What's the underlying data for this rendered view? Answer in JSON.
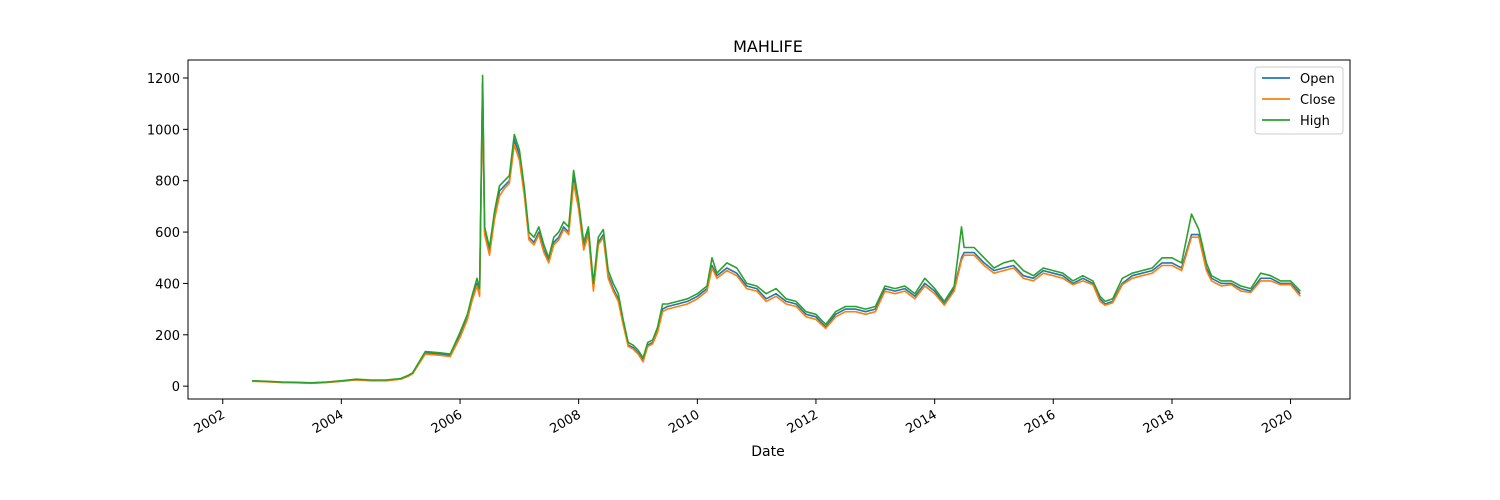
{
  "chart_data": {
    "type": "line",
    "title": "MAHLIFE",
    "xlabel": "Date",
    "ylabel": "",
    "x_axis": "date",
    "xlim": [
      "2001-06-01",
      "2021-01-01"
    ],
    "ylim": [
      -50,
      1270
    ],
    "x_ticks": [
      "2002",
      "2004",
      "2006",
      "2008",
      "2010",
      "2012",
      "2014",
      "2016",
      "2018",
      "2020"
    ],
    "y_ticks": [
      0,
      200,
      400,
      600,
      800,
      1000,
      1200
    ],
    "grid": false,
    "legend_position": "top-right",
    "x": [
      "2002-07-01",
      "2002-10-01",
      "2003-01-01",
      "2003-04-01",
      "2003-07-01",
      "2003-10-01",
      "2004-01-01",
      "2004-04-01",
      "2004-07-01",
      "2004-10-01",
      "2005-01-01",
      "2005-02-15",
      "2005-03-15",
      "2005-06-01",
      "2005-09-01",
      "2005-11-01",
      "2006-01-01",
      "2006-02-15",
      "2006-03-15",
      "2006-04-15",
      "2006-05-01",
      "2006-05-20",
      "2006-06-01",
      "2006-07-01",
      "2006-08-01",
      "2006-09-01",
      "2006-10-01",
      "2006-11-01",
      "2006-12-01",
      "2007-01-01",
      "2007-02-01",
      "2007-03-01",
      "2007-04-01",
      "2007-05-01",
      "2007-06-01",
      "2007-07-01",
      "2007-08-01",
      "2007-09-01",
      "2007-10-01",
      "2007-11-01",
      "2007-12-01",
      "2008-01-01",
      "2008-02-01",
      "2008-03-01",
      "2008-04-01",
      "2008-05-01",
      "2008-06-01",
      "2008-07-01",
      "2008-08-01",
      "2008-09-01",
      "2008-10-01",
      "2008-11-01",
      "2008-12-01",
      "2009-01-01",
      "2009-02-01",
      "2009-03-01",
      "2009-04-01",
      "2009-05-01",
      "2009-06-01",
      "2009-07-01",
      "2009-09-01",
      "2009-11-01",
      "2010-01-01",
      "2010-03-01",
      "2010-04-01",
      "2010-05-01",
      "2010-07-01",
      "2010-09-01",
      "2010-11-01",
      "2011-01-01",
      "2011-03-01",
      "2011-05-01",
      "2011-07-01",
      "2011-09-01",
      "2011-11-01",
      "2012-01-01",
      "2012-03-01",
      "2012-05-01",
      "2012-07-01",
      "2012-09-01",
      "2012-11-01",
      "2013-01-01",
      "2013-03-01",
      "2013-05-01",
      "2013-07-01",
      "2013-09-01",
      "2013-11-01",
      "2014-01-01",
      "2014-03-01",
      "2014-05-01",
      "2014-06-15",
      "2014-07-01",
      "2014-09-01",
      "2014-11-01",
      "2015-01-01",
      "2015-03-01",
      "2015-05-01",
      "2015-07-01",
      "2015-09-01",
      "2015-11-01",
      "2016-01-01",
      "2016-03-01",
      "2016-05-01",
      "2016-07-01",
      "2016-09-01",
      "2016-10-15",
      "2016-11-15",
      "2017-01-01",
      "2017-03-01",
      "2017-05-01",
      "2017-07-01",
      "2017-09-01",
      "2017-11-01",
      "2018-01-01",
      "2018-03-01",
      "2018-05-01",
      "2018-06-15",
      "2018-08-01",
      "2018-09-01",
      "2018-11-01",
      "2019-01-01",
      "2019-03-01",
      "2019-05-01",
      "2019-07-01",
      "2019-09-01",
      "2019-11-01",
      "2020-01-01",
      "2020-03-01"
    ],
    "series": [
      {
        "name": "Open",
        "color": "#1f77b4",
        "values": [
          20,
          18,
          15,
          14,
          12,
          15,
          20,
          25,
          22,
          22,
          28,
          40,
          50,
          130,
          125,
          120,
          200,
          270,
          340,
          400,
          360,
          1180,
          600,
          520,
          660,
          760,
          780,
          800,
          960,
          900,
          750,
          580,
          560,
          600,
          530,
          490,
          560,
          580,
          620,
          600,
          810,
          700,
          540,
          600,
          380,
          560,
          590,
          430,
          380,
          340,
          250,
          160,
          150,
          130,
          100,
          160,
          170,
          220,
          300,
          310,
          320,
          330,
          350,
          380,
          470,
          430,
          460,
          440,
          390,
          380,
          340,
          360,
          330,
          320,
          280,
          270,
          230,
          280,
          300,
          300,
          290,
          300,
          380,
          370,
          380,
          350,
          400,
          370,
          320,
          380,
          500,
          520,
          520,
          480,
          450,
          460,
          470,
          430,
          420,
          450,
          440,
          430,
          400,
          420,
          400,
          340,
          320,
          330,
          400,
          430,
          440,
          450,
          480,
          480,
          460,
          590,
          590,
          460,
          420,
          400,
          400,
          380,
          370,
          420,
          420,
          400,
          400,
          360
        ]
      },
      {
        "name": "Close",
        "color": "#ff7f0e",
        "values": [
          19,
          17,
          14,
          13,
          11,
          14,
          19,
          24,
          21,
          21,
          27,
          38,
          48,
          125,
          120,
          115,
          190,
          260,
          330,
          390,
          350,
          1140,
          590,
          510,
          650,
          740,
          770,
          790,
          940,
          880,
          740,
          570,
          550,
          590,
          520,
          480,
          550,
          570,
          610,
          590,
          790,
          690,
          530,
          590,
          370,
          550,
          580,
          420,
          370,
          330,
          240,
          155,
          145,
          125,
          95,
          155,
          165,
          210,
          290,
          300,
          310,
          320,
          340,
          370,
          460,
          420,
          450,
          430,
          380,
          370,
          330,
          350,
          320,
          310,
          270,
          260,
          225,
          270,
          290,
          290,
          280,
          290,
          370,
          360,
          370,
          340,
          390,
          360,
          315,
          370,
          490,
          510,
          510,
          470,
          440,
          450,
          460,
          420,
          410,
          440,
          430,
          420,
          395,
          410,
          395,
          330,
          315,
          325,
          395,
          420,
          430,
          440,
          470,
          470,
          450,
          580,
          580,
          450,
          410,
          390,
          395,
          370,
          365,
          410,
          410,
          395,
          395,
          350
        ]
      },
      {
        "name": "High",
        "color": "#2ca02c",
        "values": [
          21,
          19,
          16,
          15,
          13,
          16,
          21,
          27,
          24,
          24,
          30,
          42,
          52,
          135,
          130,
          125,
          210,
          280,
          350,
          420,
          380,
          1210,
          620,
          540,
          680,
          780,
          800,
          820,
          980,
          920,
          770,
          600,
          580,
          620,
          550,
          500,
          580,
          600,
          640,
          620,
          840,
          720,
          560,
          620,
          400,
          580,
          610,
          450,
          400,
          360,
          260,
          170,
          160,
          140,
          110,
          170,
          180,
          230,
          320,
          320,
          330,
          340,
          360,
          390,
          500,
          440,
          480,
          460,
          400,
          390,
          360,
          380,
          340,
          330,
          290,
          280,
          240,
          290,
          310,
          310,
          300,
          310,
          390,
          380,
          390,
          360,
          420,
          380,
          330,
          390,
          620,
          540,
          540,
          500,
          460,
          480,
          490,
          450,
          430,
          460,
          450,
          440,
          410,
          430,
          410,
          350,
          330,
          340,
          420,
          440,
          450,
          460,
          500,
          500,
          480,
          670,
          610,
          480,
          430,
          410,
          410,
          390,
          380,
          440,
          430,
          410,
          410,
          370
        ]
      }
    ]
  }
}
